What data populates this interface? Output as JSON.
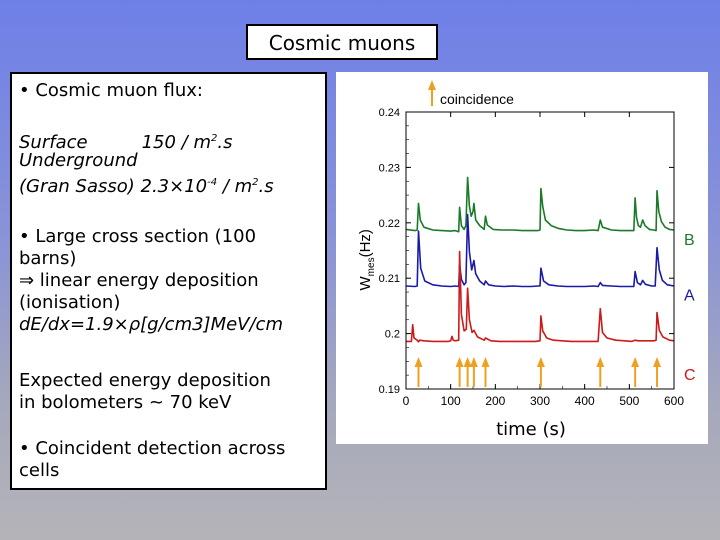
{
  "slide": {
    "title": "Cosmic muons",
    "flux_heading": "• Cosmic muon flux:",
    "surface_label": "Surface",
    "surface_value": "150 / m",
    "surface_exp": "2",
    "surface_tail": ".s",
    "underground_label": "Underground",
    "gran_sasso_label": "(Gran Sasso) 2.3",
    "gran_sasso_times": "×",
    "gran_sasso_base": "10",
    "gran_sasso_exp": "-4",
    "gran_sasso_unit": " / m",
    "gran_sasso_unit_exp": "2",
    "gran_sasso_tail": ".s",
    "cross_section_l1": "• Large cross section (100",
    "cross_section_l2": "barns)",
    "linear_l1": "⇒ linear energy deposition",
    "linear_l2": "(ionisation)",
    "dedx": "dE/dx=1.9×ρ[g/cm3]MeV/cm",
    "expected_l1": "Expected energy deposition",
    "expected_l2": "in bolometers ~ 70 keV",
    "coincident_l1": "• Coincident detection across",
    "coincident_l2": "cells",
    "time_label": "time (s)"
  },
  "chart_data": {
    "type": "line",
    "xlabel": "time (s)",
    "ylabel_main": "W",
    "ylabel_sub": "mes",
    "ylabel_unit": "(Hz)",
    "xlim": [
      0,
      600
    ],
    "ylim": [
      0.19,
      0.24
    ],
    "xticks": [
      0,
      100,
      200,
      300,
      400,
      500,
      600
    ],
    "yticks": [
      0.19,
      0.2,
      0.21,
      0.22,
      0.23,
      0.24
    ],
    "ytick_labels": [
      "0.19",
      "0.2",
      "0.21",
      "0.22",
      "0.23",
      "0.24"
    ],
    "legend_arrow_label": "coincidence",
    "colors": {
      "B": "#1a7a2a",
      "A": "#1a1aaa",
      "C": "#cc1a1a",
      "arrow": "#f0a020"
    },
    "coincidence_times": [
      28,
      120,
      138,
      152,
      178,
      302,
      435,
      513,
      562
    ],
    "series": [
      {
        "name": "B",
        "baseline": 0.2185,
        "points": [
          [
            0,
            0.2188
          ],
          [
            20,
            0.2186
          ],
          [
            25,
            0.2187
          ],
          [
            28,
            0.2235
          ],
          [
            32,
            0.2205
          ],
          [
            40,
            0.2192
          ],
          [
            60,
            0.2187
          ],
          [
            80,
            0.2186
          ],
          [
            100,
            0.2185
          ],
          [
            110,
            0.2186
          ],
          [
            118,
            0.2184
          ],
          [
            120,
            0.2228
          ],
          [
            124,
            0.2195
          ],
          [
            130,
            0.2188
          ],
          [
            134,
            0.2195
          ],
          [
            138,
            0.2282
          ],
          [
            142,
            0.223
          ],
          [
            146,
            0.2212
          ],
          [
            150,
            0.222
          ],
          [
            152,
            0.2235
          ],
          [
            156,
            0.2205
          ],
          [
            165,
            0.2195
          ],
          [
            175,
            0.2188
          ],
          [
            178,
            0.2212
          ],
          [
            182,
            0.2196
          ],
          [
            195,
            0.2188
          ],
          [
            215,
            0.2187
          ],
          [
            240,
            0.2187
          ],
          [
            260,
            0.2186
          ],
          [
            280,
            0.2186
          ],
          [
            295,
            0.2186
          ],
          [
            300,
            0.2187
          ],
          [
            302,
            0.2262
          ],
          [
            306,
            0.223
          ],
          [
            312,
            0.2205
          ],
          [
            325,
            0.2195
          ],
          [
            340,
            0.219
          ],
          [
            360,
            0.2187
          ],
          [
            380,
            0.2186
          ],
          [
            400,
            0.2186
          ],
          [
            420,
            0.2187
          ],
          [
            430,
            0.2186
          ],
          [
            435,
            0.2205
          ],
          [
            440,
            0.2192
          ],
          [
            460,
            0.2187
          ],
          [
            480,
            0.2186
          ],
          [
            500,
            0.2186
          ],
          [
            510,
            0.2186
          ],
          [
            513,
            0.2245
          ],
          [
            516,
            0.221
          ],
          [
            520,
            0.2195
          ],
          [
            525,
            0.2192
          ],
          [
            530,
            0.2205
          ],
          [
            535,
            0.2195
          ],
          [
            545,
            0.2188
          ],
          [
            555,
            0.2187
          ],
          [
            560,
            0.2186
          ],
          [
            562,
            0.2258
          ],
          [
            566,
            0.222
          ],
          [
            572,
            0.2202
          ],
          [
            580,
            0.2192
          ],
          [
            590,
            0.2188
          ],
          [
            600,
            0.2187
          ]
        ]
      },
      {
        "name": "A",
        "baseline": 0.2085,
        "points": [
          [
            0,
            0.2086
          ],
          [
            20,
            0.2085
          ],
          [
            25,
            0.2086
          ],
          [
            28,
            0.2185
          ],
          [
            33,
            0.2118
          ],
          [
            42,
            0.2095
          ],
          [
            60,
            0.2088
          ],
          [
            80,
            0.2086
          ],
          [
            100,
            0.2085
          ],
          [
            110,
            0.2086
          ],
          [
            118,
            0.2085
          ],
          [
            120,
            0.2125
          ],
          [
            124,
            0.2098
          ],
          [
            130,
            0.2088
          ],
          [
            134,
            0.2092
          ],
          [
            138,
            0.2215
          ],
          [
            142,
            0.2148
          ],
          [
            147,
            0.2115
          ],
          [
            152,
            0.2132
          ],
          [
            156,
            0.2108
          ],
          [
            165,
            0.2095
          ],
          [
            175,
            0.2088
          ],
          [
            178,
            0.2095
          ],
          [
            185,
            0.2088
          ],
          [
            200,
            0.2086
          ],
          [
            220,
            0.2085
          ],
          [
            240,
            0.2086
          ],
          [
            260,
            0.2085
          ],
          [
            280,
            0.2085
          ],
          [
            295,
            0.2086
          ],
          [
            300,
            0.2086
          ],
          [
            302,
            0.2118
          ],
          [
            308,
            0.2095
          ],
          [
            320,
            0.2088
          ],
          [
            340,
            0.2086
          ],
          [
            360,
            0.2085
          ],
          [
            380,
            0.2085
          ],
          [
            400,
            0.2085
          ],
          [
            420,
            0.2086
          ],
          [
            430,
            0.2085
          ],
          [
            435,
            0.2092
          ],
          [
            440,
            0.2087
          ],
          [
            460,
            0.2086
          ],
          [
            480,
            0.2085
          ],
          [
            500,
            0.2085
          ],
          [
            510,
            0.2085
          ],
          [
            513,
            0.2112
          ],
          [
            518,
            0.2092
          ],
          [
            525,
            0.2088
          ],
          [
            530,
            0.2096
          ],
          [
            536,
            0.2089
          ],
          [
            550,
            0.2086
          ],
          [
            558,
            0.2086
          ],
          [
            562,
            0.2155
          ],
          [
            567,
            0.2115
          ],
          [
            574,
            0.2096
          ],
          [
            585,
            0.2088
          ],
          [
            600,
            0.2086
          ]
        ]
      },
      {
        "name": "C",
        "baseline": 0.1985,
        "points": [
          [
            0,
            0.1986
          ],
          [
            12,
            0.1986
          ],
          [
            15,
            0.2016
          ],
          [
            18,
            0.1992
          ],
          [
            25,
            0.1988
          ],
          [
            28,
            0.1985
          ],
          [
            30,
            0.1988
          ],
          [
            40,
            0.1987
          ],
          [
            60,
            0.1986
          ],
          [
            80,
            0.1986
          ],
          [
            95,
            0.1986
          ],
          [
            100,
            0.1987
          ],
          [
            103,
            0.1995
          ],
          [
            106,
            0.1988
          ],
          [
            110,
            0.1987
          ],
          [
            118,
            0.1988
          ],
          [
            120,
            0.2148
          ],
          [
            124,
            0.2035
          ],
          [
            130,
            0.2005
          ],
          [
            135,
            0.2008
          ],
          [
            138,
            0.2082
          ],
          [
            142,
            0.2025
          ],
          [
            148,
            0.2002
          ],
          [
            152,
            0.2006
          ],
          [
            160,
            0.1994
          ],
          [
            175,
            0.1988
          ],
          [
            178,
            0.1992
          ],
          [
            190,
            0.1987
          ],
          [
            210,
            0.1986
          ],
          [
            240,
            0.1986
          ],
          [
            270,
            0.1986
          ],
          [
            290,
            0.1986
          ],
          [
            300,
            0.1987
          ],
          [
            302,
            0.2032
          ],
          [
            306,
            0.2005
          ],
          [
            315,
            0.1992
          ],
          [
            330,
            0.1988
          ],
          [
            350,
            0.1987
          ],
          [
            370,
            0.1986
          ],
          [
            390,
            0.1986
          ],
          [
            410,
            0.1986
          ],
          [
            430,
            0.1986
          ],
          [
            435,
            0.2045
          ],
          [
            440,
            0.2002
          ],
          [
            450,
            0.1992
          ],
          [
            470,
            0.1988
          ],
          [
            490,
            0.1987
          ],
          [
            505,
            0.1986
          ],
          [
            513,
            0.1988
          ],
          [
            520,
            0.1987
          ],
          [
            540,
            0.1987
          ],
          [
            555,
            0.1987
          ],
          [
            560,
            0.1988
          ],
          [
            562,
            0.2038
          ],
          [
            567,
            0.2006
          ],
          [
            575,
            0.1994
          ],
          [
            590,
            0.1988
          ],
          [
            600,
            0.1987
          ]
        ]
      }
    ]
  }
}
